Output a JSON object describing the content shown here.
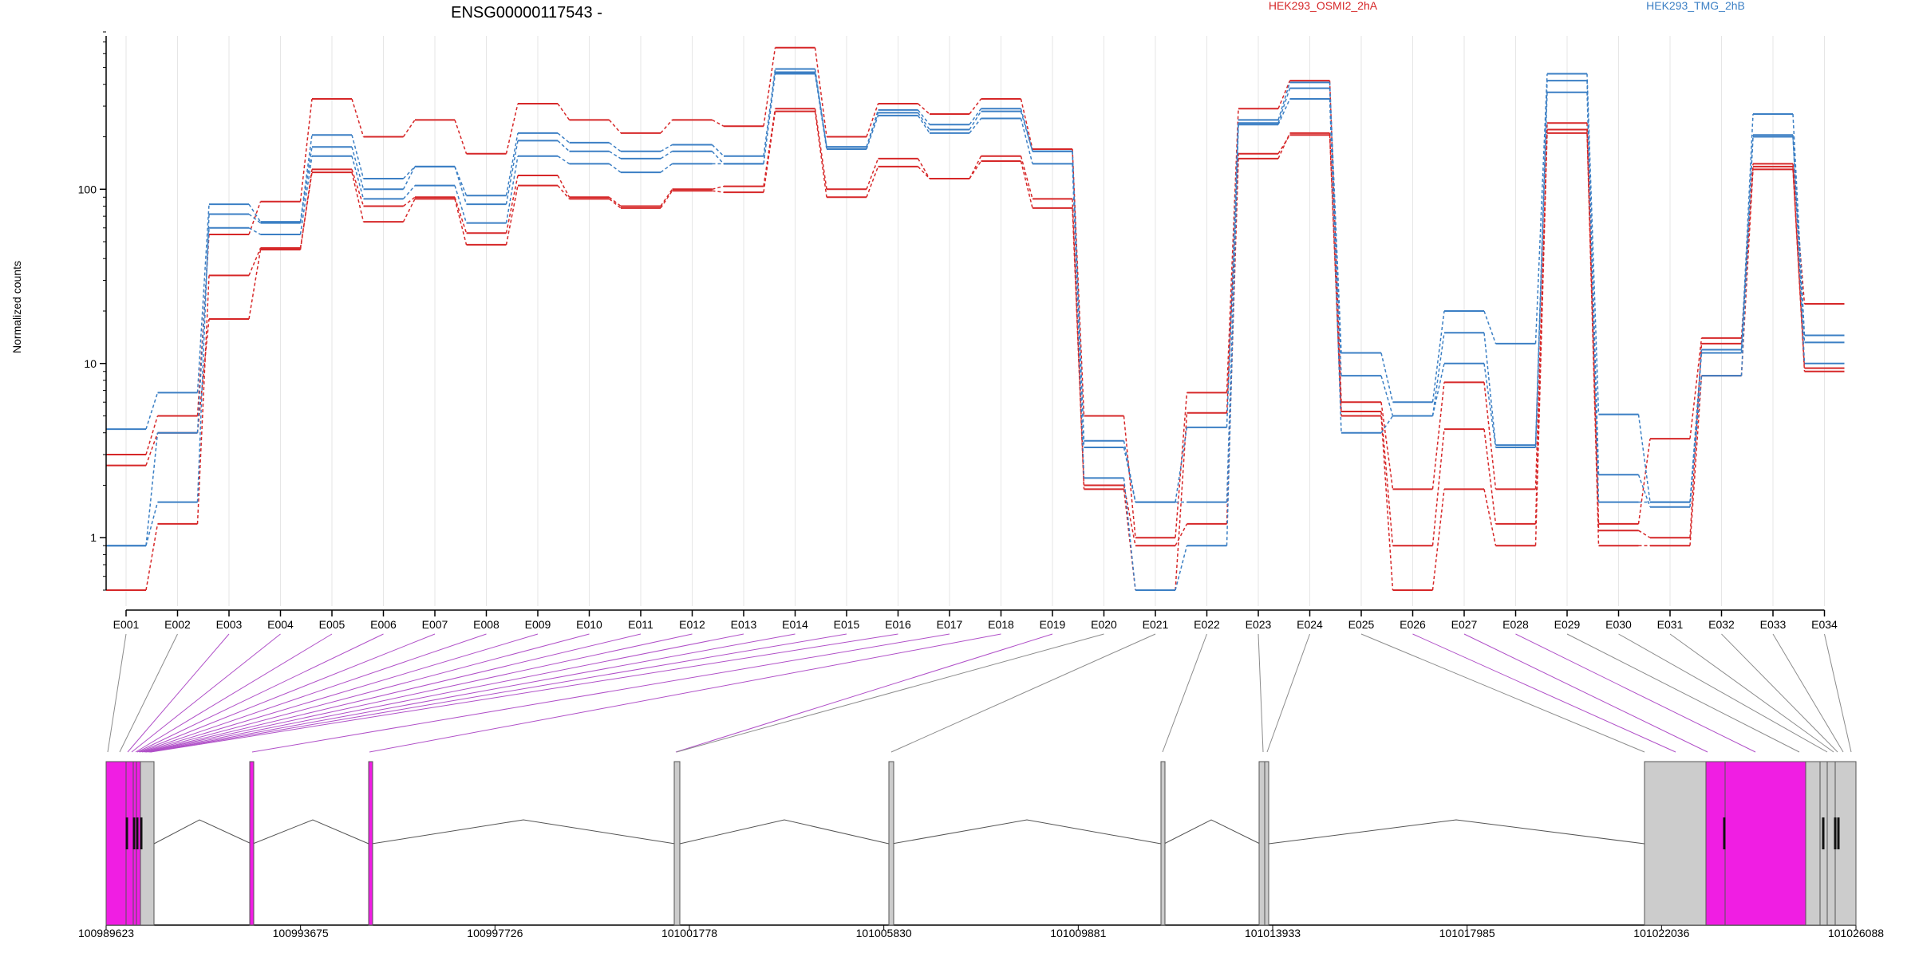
{
  "chart_data": {
    "type": "line",
    "title": "ENSG00000117543 -",
    "ylabel": "Normalized counts",
    "xlabel": "",
    "y_scale": "log",
    "ylim": [
      0.5,
      800
    ],
    "y_ticks": [
      1,
      10,
      100
    ],
    "y_tick_labels": [
      "1",
      "10",
      "100"
    ],
    "categories": [
      "E001",
      "E002",
      "E003",
      "E004",
      "E005",
      "E006",
      "E007",
      "E008",
      "E009",
      "E010",
      "E011",
      "E012",
      "E013",
      "E014",
      "E015",
      "E016",
      "E017",
      "E018",
      "E019",
      "E020",
      "E021",
      "E022",
      "E023",
      "E024",
      "E025",
      "E026",
      "E027",
      "E028",
      "E029",
      "E030",
      "E031",
      "E032",
      "E033",
      "E034"
    ],
    "conditions": [
      {
        "label": "HEK293_OSMI2_2hA",
        "color": "#d62728"
      },
      {
        "label": "HEK293_TMG_2hB",
        "color": "#3b7fc4"
      }
    ],
    "series": [
      {
        "condition": "HEK293_OSMI2_2hA",
        "values": [
          3.0,
          5.0,
          55,
          85,
          330,
          200,
          250,
          160,
          310,
          250,
          210,
          250,
          230,
          650,
          200,
          310,
          270,
          330,
          170,
          5.0,
          1.0,
          6.8,
          290,
          420,
          6.0,
          1.9,
          7.8,
          1.9,
          220,
          1.2,
          3.7,
          14,
          140,
          22
        ]
      },
      {
        "condition": "HEK293_OSMI2_2hA",
        "values": [
          2.6,
          4.0,
          18,
          45,
          130,
          80,
          90,
          56,
          120,
          90,
          80,
          100,
          104,
          290,
          100,
          150,
          115,
          155,
          88,
          2.0,
          0.9,
          1.2,
          150,
          210,
          5.3,
          0.9,
          4.2,
          1.2,
          240,
          1.1,
          1.0,
          13,
          135,
          9.4
        ]
      },
      {
        "condition": "HEK293_OSMI2_2hA",
        "values": [
          0.5,
          1.2,
          32,
          46,
          125,
          65,
          88,
          48,
          105,
          88,
          78,
          98,
          96,
          280,
          90,
          135,
          115,
          145,
          78,
          1.9,
          0.5,
          5.2,
          160,
          205,
          5.0,
          0.5,
          1.9,
          0.9,
          210,
          0.9,
          0.9,
          8.5,
          130,
          9.0
        ]
      },
      {
        "condition": "HEK293_TMG_2hB",
        "values": [
          4.2,
          6.8,
          82,
          65,
          205,
          115,
          135,
          92,
          210,
          185,
          165,
          180,
          155,
          490,
          175,
          285,
          235,
          290,
          165,
          3.6,
          1.6,
          4.3,
          250,
          410,
          11.5,
          6.0,
          20,
          13,
          460,
          5.1,
          1.6,
          12,
          270,
          14.5
        ]
      },
      {
        "condition": "HEK293_TMG_2hB",
        "values": [
          0.9,
          1.6,
          72,
          64,
          175,
          100,
          135,
          82,
          190,
          165,
          150,
          165,
          140,
          470,
          175,
          275,
          220,
          280,
          165,
          3.3,
          1.6,
          1.6,
          240,
          380,
          8.5,
          5.0,
          15,
          3.4,
          420,
          2.3,
          1.5,
          11.5,
          200,
          13.2
        ]
      },
      {
        "condition": "HEK293_TMG_2hB",
        "values": [
          0.9,
          4.0,
          60,
          55,
          155,
          88,
          105,
          64,
          155,
          140,
          125,
          140,
          140,
          460,
          170,
          265,
          210,
          255,
          140,
          2.2,
          0.5,
          0.9,
          235,
          330,
          4.0,
          5.0,
          10,
          3.3,
          360,
          1.6,
          1.6,
          8.5,
          205,
          10.0
        ]
      }
    ],
    "genomic_axis": {
      "tick_labels": [
        "100989623",
        "100993675",
        "100997726",
        "101001778",
        "101005830",
        "101009881",
        "101013933",
        "101017985",
        "101022036",
        "101026088"
      ]
    },
    "exon_colors": {
      "tested": "#cccccc",
      "significant": "#f01ee3",
      "outline": "#555555"
    },
    "connector_colors": {
      "normal": "#8c8c8c",
      "significant": "#b050c8"
    }
  }
}
